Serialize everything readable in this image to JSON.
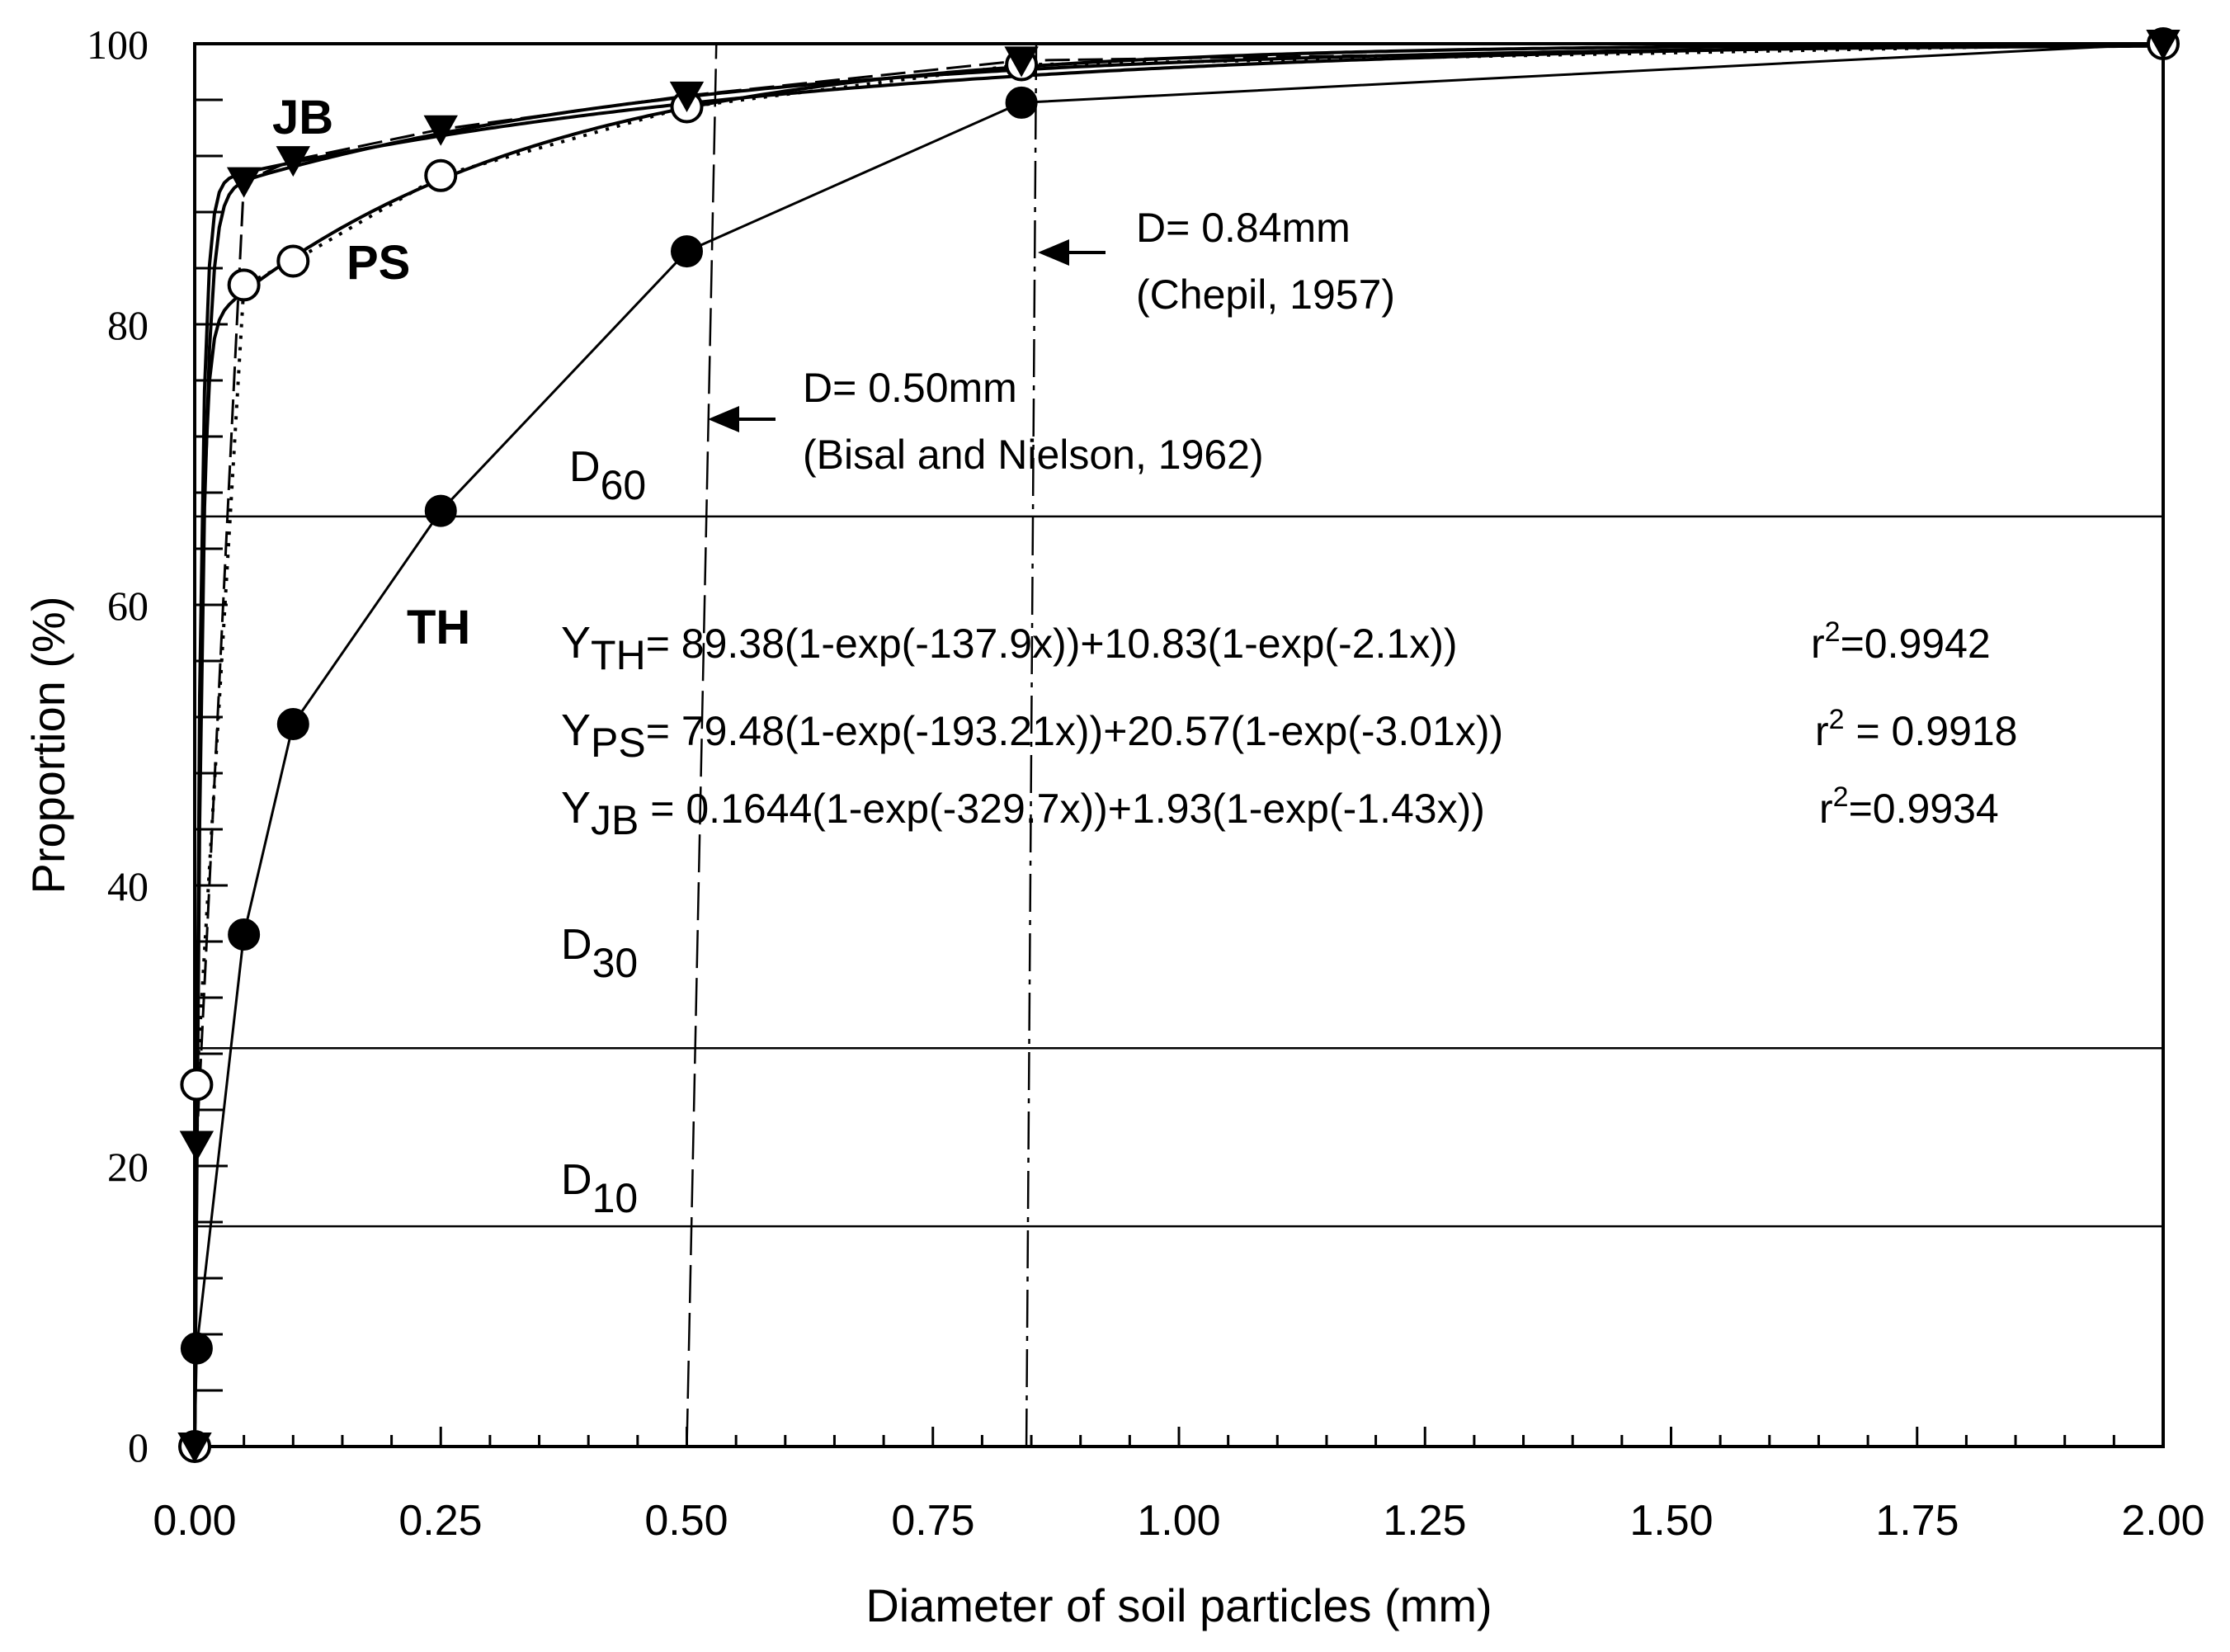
{
  "chart_data": {
    "type": "line",
    "xlabel": "Diameter of soil particles (mm)",
    "ylabel": "Proportion (%)",
    "xlim": [
      0,
      2
    ],
    "ylim": [
      0,
      100
    ],
    "x_ticks": [
      "0.00",
      "0.25",
      "0.50",
      "0.75",
      "1.00",
      "1.25",
      "1.50",
      "1.75",
      "2.00"
    ],
    "y_ticks": [
      "0",
      "20",
      "40",
      "60",
      "80",
      "100"
    ],
    "series": [
      {
        "name": "TH",
        "marker": "filled-circle",
        "x": [
          0,
          0.002,
          0.05,
          0.1,
          0.25,
          0.5,
          0.84,
          2.0
        ],
        "values": [
          0,
          7,
          36.5,
          51.5,
          66.7,
          85.2,
          95.8,
          100
        ],
        "fit": {
          "a1": 89.38,
          "b1": 137.9,
          "a2": 10.83,
          "b2": 2.1
        }
      },
      {
        "name": "PS",
        "marker": "open-circle",
        "x": [
          0,
          0.002,
          0.05,
          0.1,
          0.25,
          0.5,
          0.84,
          2.0
        ],
        "values": [
          0,
          25.8,
          82.8,
          84.5,
          90.6,
          95.5,
          98.5,
          100
        ],
        "fit": {
          "a1": 79.48,
          "b1": 193.21,
          "a2": 20.57,
          "b2": 3.01
        }
      },
      {
        "name": "JB",
        "marker": "filled-triangle-down",
        "x": [
          0,
          0.002,
          0.05,
          0.1,
          0.25,
          0.5,
          0.84,
          2.0
        ],
        "values": [
          0,
          21.5,
          90.2,
          91.7,
          93.9,
          96.3,
          98.8,
          100
        ],
        "fit": {
          "a1": 0.1644,
          "b1": 329.7,
          "a2": 1.93,
          "b2": 1.43
        }
      }
    ],
    "reference_lines": [
      {
        "name": "D60",
        "y": 66.3
      },
      {
        "name": "D30",
        "y": 28.4
      },
      {
        "name": "D10",
        "y": 15.7
      }
    ],
    "vertical_markers": [
      {
        "x": 0.5,
        "label": "D= 0.50mm",
        "citation": "(Bisal and Nielson, 1962)"
      },
      {
        "x": 0.84,
        "label": "D= 0.84mm",
        "citation": "(Chepil, 1957)"
      }
    ],
    "equations": [
      {
        "y_main": "Y",
        "y_sub": "TH",
        "rhs": "= 89.38(1-exp(-137.9x))+10.83(1-exp(-2.1x))",
        "r_main": "r",
        "r_sup": "2",
        "r_rest": "=0.9942"
      },
      {
        "y_main": "Y",
        "y_sub": "PS",
        "rhs": "= 79.48(1-exp(-193.21x))+20.57(1-exp(-3.01x))",
        "r_main": "r",
        "r_sup": "2",
        "r_rest": " = 0.9918"
      },
      {
        "y_main": "Y",
        "y_sub": "JB",
        "rhs": " = 0.1644(1-exp(-329.7x))+1.93(1-exp(-1.43x))",
        "r_main": "r",
        "r_sup": "2",
        "r_rest": "=0.9934"
      }
    ],
    "reference_labels": [
      {
        "main": "D",
        "sub": "60"
      },
      {
        "main": "D",
        "sub": "30"
      },
      {
        "main": "D",
        "sub": "10"
      }
    ],
    "series_labels": [
      "JB",
      "PS",
      "TH"
    ]
  }
}
